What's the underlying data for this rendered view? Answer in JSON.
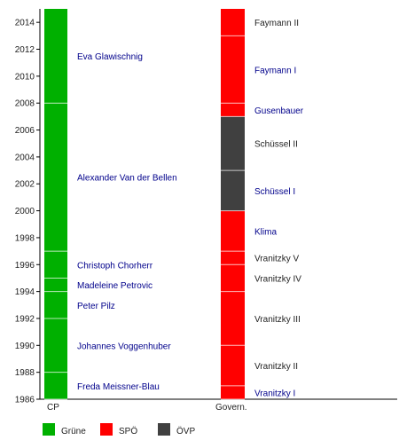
{
  "chart_data": {
    "type": "timeline",
    "title": "",
    "y_axis": {
      "min": 1986,
      "max": 2015,
      "ticks": [
        1986,
        1988,
        1990,
        1992,
        1994,
        1996,
        1998,
        2000,
        2002,
        2004,
        2006,
        2008,
        2010,
        2012,
        2014
      ]
    },
    "columns": [
      {
        "label": "CP",
        "key": "cp"
      },
      {
        "label": "Govern.",
        "key": "gov"
      }
    ],
    "colors": {
      "Grüne": "#00b000",
      "SPÖ": "#ff0000",
      "ÖVP": "#404040",
      "link": "#00008b",
      "text": "#222222"
    },
    "cp": [
      {
        "name": "Freda Meissner-Blau",
        "party": "Grüne",
        "start": 1986,
        "end": 1988,
        "link": true
      },
      {
        "name": "Johannes Voggenhuber",
        "party": "Grüne",
        "start": 1988,
        "end": 1992,
        "link": true
      },
      {
        "name": "Peter Pilz",
        "party": "Grüne",
        "start": 1992,
        "end": 1994,
        "link": true
      },
      {
        "name": "Madeleine Petrovic",
        "party": "Grüne",
        "start": 1994,
        "end": 1995,
        "link": true
      },
      {
        "name": "Christoph Chorherr",
        "party": "Grüne",
        "start": 1995,
        "end": 1997,
        "link": true
      },
      {
        "name": "Alexander Van der Bellen",
        "party": "Grüne",
        "start": 1997,
        "end": 2008,
        "link": true
      },
      {
        "name": "Eva Glawischnig",
        "party": "Grüne",
        "start": 2008,
        "end": 2015,
        "link": true
      }
    ],
    "gov": [
      {
        "name": "Vranitzky I",
        "party": "SPÖ",
        "start": 1986,
        "end": 1987,
        "link": true
      },
      {
        "name": "Vranitzky II",
        "party": "SPÖ",
        "start": 1987,
        "end": 1990,
        "link": false
      },
      {
        "name": "Vranitzky III",
        "party": "SPÖ",
        "start": 1990,
        "end": 1994,
        "link": false
      },
      {
        "name": "Vranitzky IV",
        "party": "SPÖ",
        "start": 1994,
        "end": 1996,
        "link": false
      },
      {
        "name": "Vranitzky V",
        "party": "SPÖ",
        "start": 1996,
        "end": 1997,
        "link": false
      },
      {
        "name": "Klima",
        "party": "SPÖ",
        "start": 1997,
        "end": 2000,
        "link": true
      },
      {
        "name": "Schüssel I",
        "party": "ÖVP",
        "start": 2000,
        "end": 2003,
        "link": true
      },
      {
        "name": "Schüssel II",
        "party": "ÖVP",
        "start": 2003,
        "end": 2007,
        "link": false
      },
      {
        "name": "Gusenbauer",
        "party": "SPÖ",
        "start": 2007,
        "end": 2008,
        "link": true
      },
      {
        "name": "Faymann I",
        "party": "SPÖ",
        "start": 2008,
        "end": 2013,
        "link": true
      },
      {
        "name": "Faymann II",
        "party": "SPÖ",
        "start": 2013,
        "end": 2015,
        "link": false
      }
    ],
    "legend": {
      "placement": "bottom",
      "items": [
        "Grüne",
        "SPÖ",
        "ÖVP"
      ]
    }
  }
}
